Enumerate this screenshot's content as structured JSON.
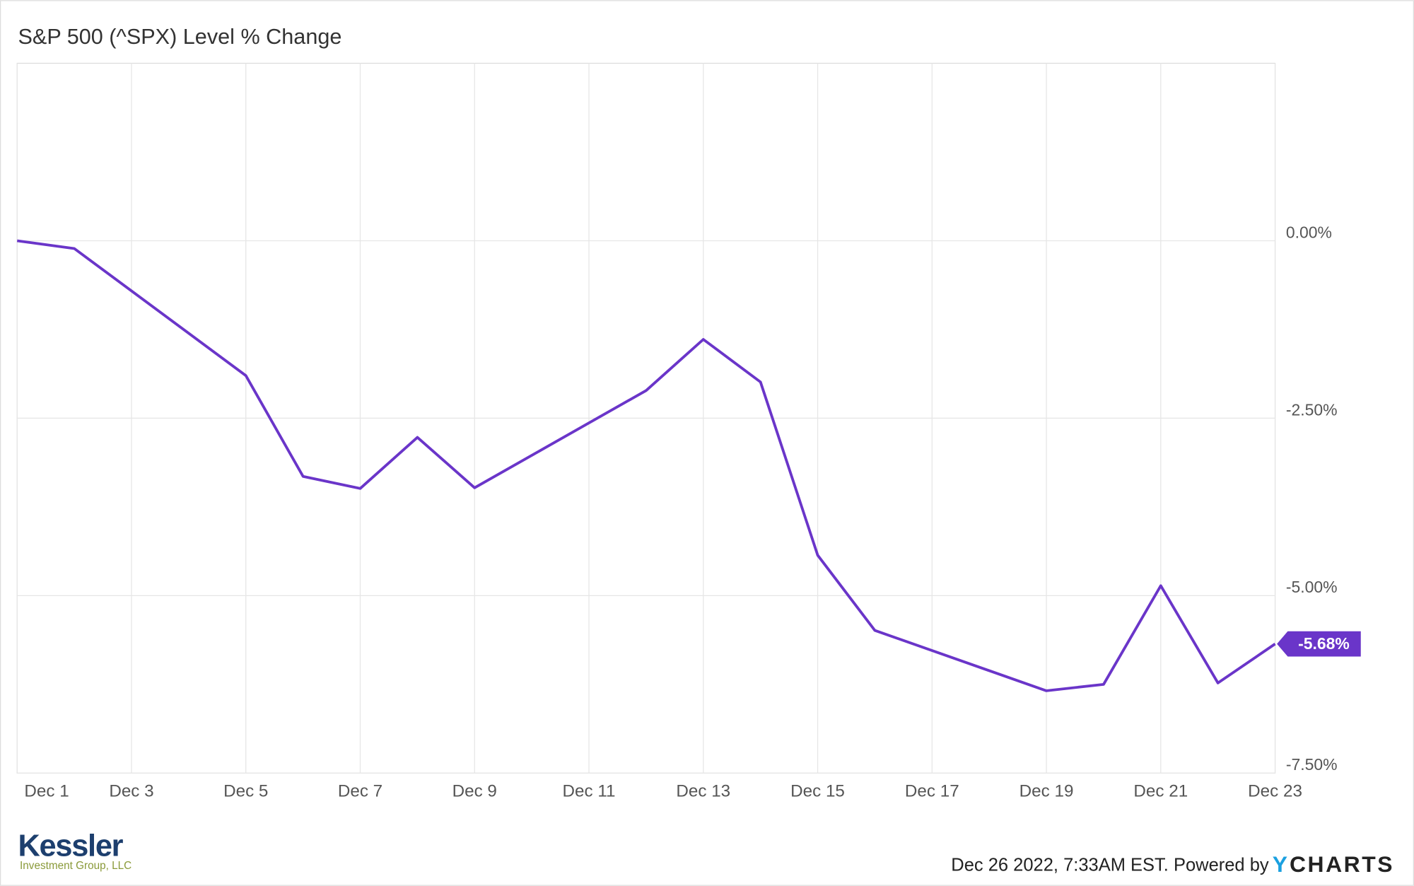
{
  "chart_data": {
    "type": "line",
    "title": "S&P 500 (^SPX) Level % Change",
    "x": [
      1,
      2,
      5,
      6,
      7,
      8,
      9,
      12,
      13,
      14,
      15,
      16,
      19,
      20,
      21,
      22,
      23
    ],
    "series": [
      {
        "name": "S&P 500 (^SPX) Level % Change",
        "color": "#6a35c9",
        "values": [
          0,
          -0.11,
          -1.9,
          -3.32,
          -3.49,
          -2.77,
          -3.48,
          -2.11,
          -1.39,
          -1.99,
          -4.43,
          -5.49,
          -6.34,
          -6.25,
          -4.86,
          -6.23,
          -5.68
        ],
        "value_labels": [
          null,
          null,
          null,
          null,
          null,
          null,
          null,
          null,
          null,
          null,
          null,
          null,
          null,
          null,
          null,
          null,
          "-5.68%"
        ]
      }
    ],
    "xlim": [
      1,
      23
    ],
    "xticks": [
      {
        "value": 1,
        "label": "Dec 1"
      },
      {
        "value": 3,
        "label": "Dec 3"
      },
      {
        "value": 5,
        "label": "Dec 5"
      },
      {
        "value": 7,
        "label": "Dec 7"
      },
      {
        "value": 9,
        "label": "Dec 9"
      },
      {
        "value": 11,
        "label": "Dec 11"
      },
      {
        "value": 13,
        "label": "Dec 13"
      },
      {
        "value": 15,
        "label": "Dec 15"
      },
      {
        "value": 17,
        "label": "Dec 17"
      },
      {
        "value": 19,
        "label": "Dec 19"
      },
      {
        "value": 21,
        "label": "Dec 21"
      },
      {
        "value": 23,
        "label": "Dec 23"
      }
    ],
    "ylim": [
      -7.5,
      2.5
    ],
    "yticks": [
      {
        "value": 0,
        "label": "0.00%"
      },
      {
        "value": -2.5,
        "label": "-2.50%"
      },
      {
        "value": -5,
        "label": "-5.00%"
      },
      {
        "value": -7.5,
        "label": "-7.50%"
      }
    ],
    "grid": true
  },
  "footer": {
    "brand": "Kessler",
    "brand_subtitle": "Investment Group, LLC",
    "timestamp": "Dec 26 2022, 7:33AM EST. Powered by",
    "logo_y": "Y",
    "logo_rest": "CHARTS"
  }
}
